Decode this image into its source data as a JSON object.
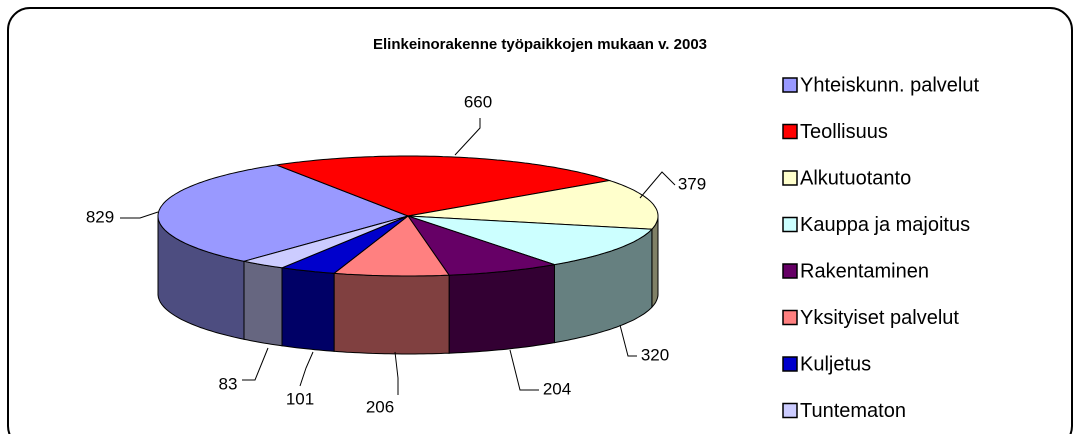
{
  "chart_data": {
    "type": "pie",
    "title": "Elinkeinorakenne työpaikkojen mukaan v. 2003",
    "categories": [
      "Yhteiskunn. palvelut",
      "Teollisuus",
      "Alkutuotanto",
      "Kauppa ja majoitus",
      "Rakentaminen",
      "Yksityiset palvelut",
      "Kuljetus",
      "Tuntematon"
    ],
    "values": [
      829,
      660,
      379,
      320,
      204,
      206,
      101,
      83
    ],
    "colors": [
      "#9999ff",
      "#ff0000",
      "#ffffcc",
      "#ccffff",
      "#660066",
      "#ff8080",
      "#0000cc",
      "#ccccff"
    ],
    "legend": "right"
  }
}
